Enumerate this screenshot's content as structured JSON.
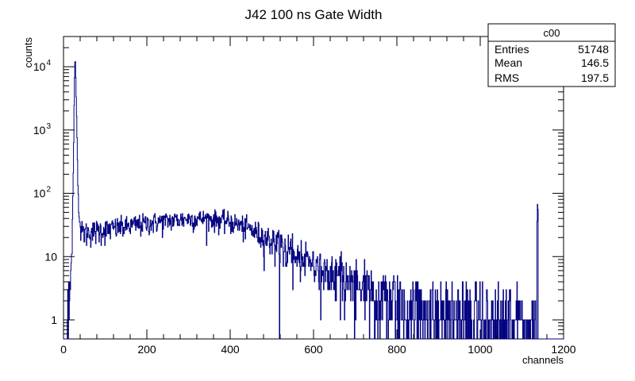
{
  "chart_data": {
    "type": "histogram",
    "title": "J42 100 ns Gate Width",
    "xlabel": "channels",
    "ylabel": "counts",
    "xlim": [
      0,
      1200
    ],
    "ylim": [
      0.5,
      30000
    ],
    "y_scale": "log",
    "grid": false,
    "line_color": "#000080",
    "x_ticks": [
      0,
      200,
      400,
      600,
      800,
      1000,
      1200
    ],
    "y_ticks": [
      {
        "value": 1,
        "label": "1"
      },
      {
        "value": 10,
        "label": "10"
      },
      {
        "value": 100,
        "label": "10",
        "exp": "2"
      },
      {
        "value": 1000,
        "label": "10",
        "exp": "3"
      },
      {
        "value": 10000,
        "label": "10",
        "exp": "4"
      }
    ],
    "profile": [
      [
        0,
        0
      ],
      [
        8,
        0
      ],
      [
        10,
        1
      ],
      [
        14,
        2
      ],
      [
        18,
        5
      ],
      [
        21,
        20
      ],
      [
        24,
        300
      ],
      [
        26,
        5000
      ],
      [
        28,
        16000
      ],
      [
        30,
        5000
      ],
      [
        32,
        1200
      ],
      [
        34,
        200
      ],
      [
        36,
        80
      ],
      [
        38,
        40
      ],
      [
        40,
        30
      ],
      [
        45,
        24
      ],
      [
        60,
        25
      ],
      [
        100,
        27
      ],
      [
        150,
        30
      ],
      [
        200,
        34
      ],
      [
        250,
        37
      ],
      [
        300,
        40
      ],
      [
        350,
        40
      ],
      [
        400,
        36
      ],
      [
        450,
        27
      ],
      [
        500,
        18
      ],
      [
        550,
        12
      ],
      [
        600,
        8
      ],
      [
        650,
        5
      ],
      [
        700,
        3.5
      ],
      [
        750,
        2.6
      ],
      [
        800,
        2
      ],
      [
        850,
        1.7
      ],
      [
        900,
        1.4
      ],
      [
        950,
        1.2
      ],
      [
        1000,
        1.05
      ],
      [
        1050,
        1.0
      ],
      [
        1100,
        0.9
      ],
      [
        1130,
        0.9
      ],
      [
        1136,
        0
      ],
      [
        1137,
        30
      ],
      [
        1138,
        110
      ],
      [
        1139,
        40
      ],
      [
        1140,
        0
      ],
      [
        1200,
        0
      ]
    ],
    "stats_box": {
      "title": "c00",
      "rows": [
        {
          "label": "Entries",
          "value": "51748"
        },
        {
          "label": "Mean",
          "value": "146.5"
        },
        {
          "label": "RMS",
          "value": "197.5"
        }
      ]
    }
  }
}
